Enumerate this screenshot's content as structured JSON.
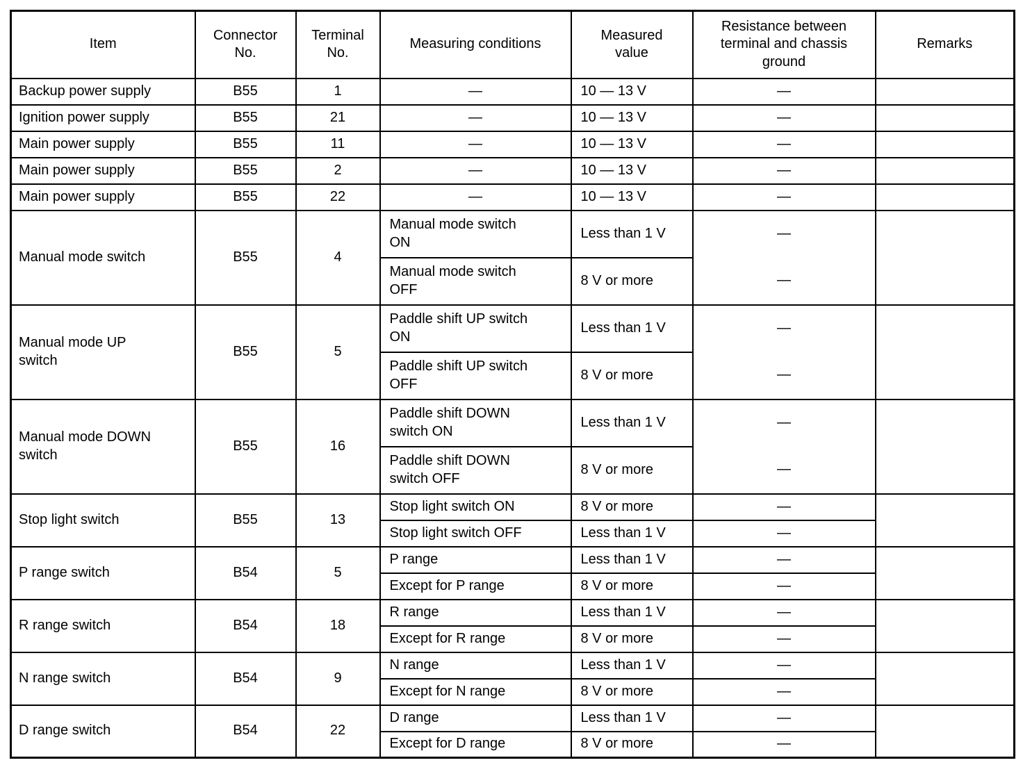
{
  "table": {
    "dash": "—",
    "headers": {
      "item": "Item",
      "connector": "Connector\nNo.",
      "terminal": "Terminal\nNo.",
      "conditions": "Measuring conditions",
      "value": "Measured\nvalue",
      "resistance": "Resistance between\nterminal and chassis\nground",
      "remarks": "Remarks"
    },
    "blocks": [
      {
        "item": "Backup power supply",
        "connector": "B55",
        "terminal": "1",
        "remarks": "",
        "rows": [
          {
            "condition": "—",
            "value": "10 — 13 V",
            "resistance": "—"
          }
        ]
      },
      {
        "item": "Ignition power supply",
        "connector": "B55",
        "terminal": "21",
        "remarks": "",
        "rows": [
          {
            "condition": "—",
            "value": "10 — 13 V",
            "resistance": "—"
          }
        ]
      },
      {
        "item": "Main power supply",
        "connector": "B55",
        "terminal": "11",
        "remarks": "",
        "rows": [
          {
            "condition": "—",
            "value": "10 — 13 V",
            "resistance": "—"
          }
        ]
      },
      {
        "item": "Main power supply",
        "connector": "B55",
        "terminal": "2",
        "remarks": "",
        "rows": [
          {
            "condition": "—",
            "value": "10 — 13 V",
            "resistance": "—"
          }
        ]
      },
      {
        "item": "Main power supply",
        "connector": "B55",
        "terminal": "22",
        "remarks": "",
        "rows": [
          {
            "condition": "—",
            "value": "10 — 13 V",
            "resistance": "—"
          }
        ]
      },
      {
        "item": "Manual mode switch",
        "connector": "B55",
        "terminal": "4",
        "remarks": "",
        "rows": [
          {
            "condition": "Manual mode switch\nON",
            "value": "Less than 1 V",
            "resistance": "—"
          },
          {
            "condition": "Manual mode switch\nOFF",
            "value": "8 V or more",
            "resistance": "—"
          }
        ]
      },
      {
        "item": "Manual mode UP\nswitch",
        "connector": "B55",
        "terminal": "5",
        "remarks": "",
        "rows": [
          {
            "condition": "Paddle shift UP switch\nON",
            "value": "Less than 1 V",
            "resistance": "—"
          },
          {
            "condition": "Paddle shift UP switch\nOFF",
            "value": "8 V or more",
            "resistance": "—"
          }
        ]
      },
      {
        "item": "Manual mode DOWN\nswitch",
        "connector": "B55",
        "terminal": "16",
        "remarks": "",
        "rows": [
          {
            "condition": "Paddle shift DOWN\nswitch ON",
            "value": "Less than 1 V",
            "resistance": "—"
          },
          {
            "condition": "Paddle shift DOWN\nswitch OFF",
            "value": "8 V or more",
            "resistance": "—"
          }
        ]
      },
      {
        "item": "Stop light switch",
        "connector": "B55",
        "terminal": "13",
        "remarks": "",
        "rows": [
          {
            "condition": "Stop light switch ON",
            "value": "8 V or more",
            "resistance": "—"
          },
          {
            "condition": "Stop light switch OFF",
            "value": "Less than 1 V",
            "resistance": "—"
          }
        ]
      },
      {
        "item": "P range switch",
        "connector": "B54",
        "terminal": "5",
        "remarks": "",
        "rows": [
          {
            "condition": "P range",
            "value": "Less than 1 V",
            "resistance": "—"
          },
          {
            "condition": "Except for P range",
            "value": "8 V or more",
            "resistance": "—"
          }
        ]
      },
      {
        "item": "R range switch",
        "connector": "B54",
        "terminal": "18",
        "remarks": "",
        "rows": [
          {
            "condition": "R range",
            "value": "Less than 1 V",
            "resistance": "—"
          },
          {
            "condition": "Except for R range",
            "value": "8 V or more",
            "resistance": "—"
          }
        ]
      },
      {
        "item": "N range switch",
        "connector": "B54",
        "terminal": "9",
        "remarks": "",
        "rows": [
          {
            "condition": "N range",
            "value": "Less than 1 V",
            "resistance": "—"
          },
          {
            "condition": "Except for N range",
            "value": "8 V or more",
            "resistance": "—"
          }
        ]
      },
      {
        "item": "D range switch",
        "connector": "B54",
        "terminal": "22",
        "remarks": "",
        "rows": [
          {
            "condition": "D range",
            "value": "Less than 1 V",
            "resistance": "—"
          },
          {
            "condition": "Except for D range",
            "value": "8 V or more",
            "resistance": "—"
          }
        ]
      }
    ]
  }
}
